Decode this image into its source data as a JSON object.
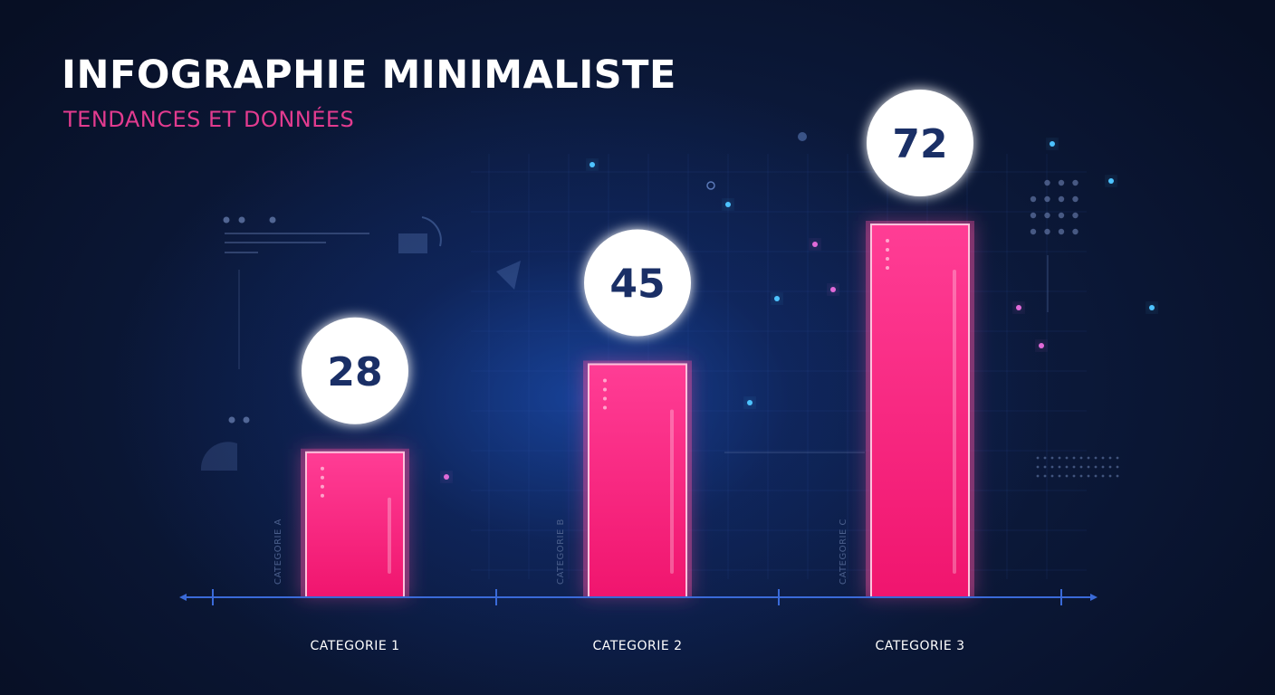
{
  "chart_data": {
    "type": "bar",
    "title": "INFOGRAPHIE MINIMALISTE",
    "subtitle": "TENDANCES ET DONNÉES",
    "categories": [
      "CATEGORIE 1",
      "CATEGORIE 2",
      "CATEGORIE 3"
    ],
    "side_labels": [
      "CATEGORIE A",
      "CATEGORIE B",
      "CATEGORIE C"
    ],
    "values": [
      28,
      45,
      72
    ],
    "value_labels": [
      "28",
      "45",
      "72"
    ],
    "ylim": [
      0,
      100
    ],
    "grid": true,
    "legend": "none",
    "colors": {
      "bar": "#ff2d8a",
      "bar_glow": "#ff4fa3",
      "value_bubble": "#ffffff",
      "value_text": "#1a2f66",
      "axis": "#3a6ad8",
      "title": "#ffffff",
      "subtitle": "#e23b8f"
    }
  }
}
